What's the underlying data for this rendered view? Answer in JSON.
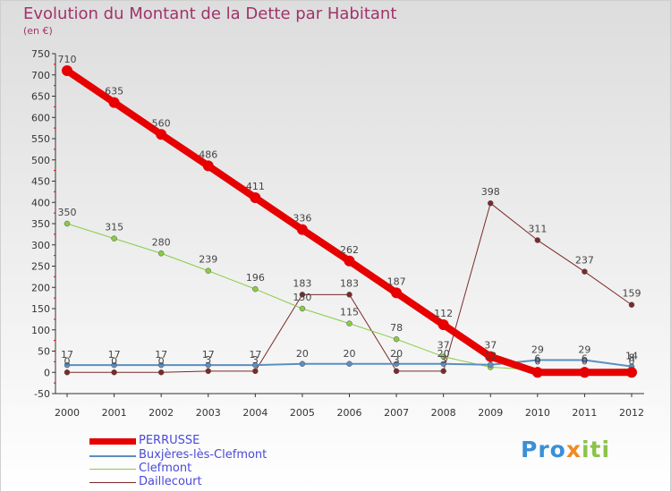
{
  "title": "Evolution du Montant de la Dette par Habitant",
  "subtitle": "(en €)",
  "logo": {
    "part1": "Pro",
    "part2": "x",
    "part3": "iti"
  },
  "chart_data": {
    "type": "line",
    "x": [
      "2000",
      "2001",
      "2002",
      "2003",
      "2004",
      "2005",
      "2006",
      "2007",
      "2008",
      "2009",
      "2010",
      "2011",
      "2012"
    ],
    "ylim": [
      -50,
      750
    ],
    "yticks": [
      -50,
      0,
      50,
      100,
      150,
      200,
      250,
      300,
      350,
      400,
      450,
      500,
      550,
      600,
      650,
      700,
      750
    ],
    "grid": false,
    "legend_position": "bottom-left",
    "series": [
      {
        "name": "PERRUSSE",
        "color": "#e60000",
        "width": 8,
        "values": [
          710,
          635,
          560,
          486,
          411,
          336,
          262,
          187,
          112,
          37,
          0,
          0,
          0
        ],
        "labels": [
          "710",
          "635",
          "560",
          "486",
          "411",
          "336",
          "262",
          "187",
          "112",
          "37",
          "0",
          "0",
          "0"
        ]
      },
      {
        "name": "Buxjères-lès-Clefmont",
        "color": "#5b8fc0",
        "width": 2,
        "values": [
          17,
          17,
          17,
          17,
          17,
          20,
          20,
          20,
          20,
          18,
          29,
          29,
          14
        ],
        "labels": [
          "17",
          "17",
          "17",
          "17",
          "17",
          "20",
          "20",
          "20",
          "20",
          "",
          "29",
          "29",
          "14"
        ]
      },
      {
        "name": "Clefmont",
        "color": "#88cc44",
        "width": 1,
        "values": [
          350,
          315,
          280,
          239,
          196,
          150,
          115,
          78,
          37,
          12,
          6,
          6,
          8
        ],
        "labels": [
          "350",
          "315",
          "280",
          "239",
          "196",
          "150",
          "115",
          "78",
          "37",
          "12",
          "6",
          "6",
          "8"
        ]
      },
      {
        "name": "Daillecourt",
        "color": "#7a2a2a",
        "width": 1,
        "values": [
          0,
          0,
          0,
          3,
          3,
          183,
          183,
          3,
          3,
          398,
          311,
          237,
          159
        ],
        "labels": [
          "0",
          "0",
          "0",
          "3",
          "3",
          "183",
          "183",
          "3",
          "3",
          "398",
          "311",
          "237",
          "159"
        ]
      }
    ]
  }
}
